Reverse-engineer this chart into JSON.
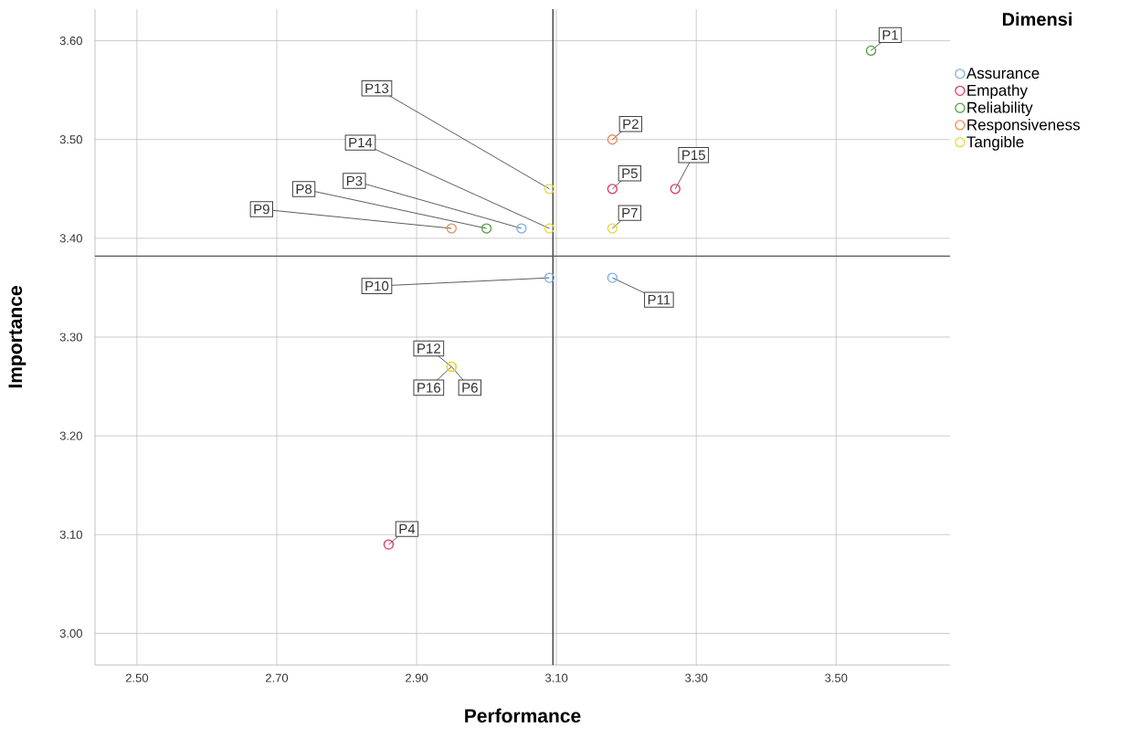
{
  "chart_data": {
    "type": "scatter",
    "xlabel": "Performance",
    "ylabel": "Importance",
    "legend_title": "Dimensi",
    "series": [
      {
        "name": "Assurance",
        "color": "#7aaee8",
        "x": [
          3.05,
          3.09,
          3.18
        ],
        "values": [
          3.41,
          3.36,
          3.36
        ]
      },
      {
        "name": "Empathy",
        "color": "#e0335a",
        "x": [
          2.86,
          3.18,
          3.27
        ],
        "values": [
          3.09,
          3.45,
          3.45
        ]
      },
      {
        "name": "Reliability",
        "color": "#4c9f3c",
        "x": [
          3.55,
          3.0
        ],
        "values": [
          3.59,
          3.41
        ]
      },
      {
        "name": "Responsiveness",
        "color": "#f08a5a",
        "x": [
          3.18,
          2.95
        ],
        "values": [
          3.5,
          3.41
        ]
      },
      {
        "name": "Tangible",
        "color": "#e8d83a",
        "x": [
          3.18,
          3.09,
          3.09,
          2.95,
          2.95,
          2.95
        ],
        "values": [
          3.41,
          3.45,
          3.41,
          3.27,
          3.27,
          3.27
        ]
      }
    ],
    "annotations": [
      {
        "text": "P1",
        "x": 3.55,
        "y": 3.59
      },
      {
        "text": "P2",
        "x": 3.18,
        "y": 3.5
      },
      {
        "text": "P3",
        "x": 3.05,
        "y": 3.41
      },
      {
        "text": "P4",
        "x": 2.86,
        "y": 3.09
      },
      {
        "text": "P5",
        "x": 3.18,
        "y": 3.45
      },
      {
        "text": "P6",
        "x": 2.95,
        "y": 3.27
      },
      {
        "text": "P7",
        "x": 3.18,
        "y": 3.41
      },
      {
        "text": "P8",
        "x": 3.0,
        "y": 3.41
      },
      {
        "text": "P9",
        "x": 2.95,
        "y": 3.41
      },
      {
        "text": "P10",
        "x": 3.09,
        "y": 3.36
      },
      {
        "text": "P11",
        "x": 3.18,
        "y": 3.36
      },
      {
        "text": "P12",
        "x": 2.95,
        "y": 3.27
      },
      {
        "text": "P13",
        "x": 3.09,
        "y": 3.45
      },
      {
        "text": "P14",
        "x": 3.09,
        "y": 3.41
      },
      {
        "text": "P15",
        "x": 3.27,
        "y": 3.45
      },
      {
        "text": "P16",
        "x": 2.95,
        "y": 3.27
      }
    ],
    "ref_lines": [
      {
        "axis": "x",
        "value": 3.095,
        "color": "#333333"
      },
      {
        "axis": "y",
        "value": 3.382,
        "color": "#555555"
      }
    ],
    "xlim": [
      2.44,
      3.663
    ],
    "ylim": [
      2.968,
      3.632
    ],
    "xticks": [
      {
        "value": 2.5,
        "label": "2.50"
      },
      {
        "value": 2.7,
        "label": "2.70"
      },
      {
        "value": 2.9,
        "label": "2.90"
      },
      {
        "value": 3.1,
        "label": "3.10"
      },
      {
        "value": 3.3,
        "label": "3.30"
      },
      {
        "value": 3.5,
        "label": "3.50"
      }
    ],
    "yticks": [
      {
        "value": 3.0,
        "label": "3.00"
      },
      {
        "value": 3.1,
        "label": "3.10"
      },
      {
        "value": 3.2,
        "label": "3.20"
      },
      {
        "value": 3.3,
        "label": "3.30"
      },
      {
        "value": 3.4,
        "label": "3.40"
      },
      {
        "value": 3.5,
        "label": "3.50"
      },
      {
        "value": 3.6,
        "label": "3.60"
      }
    ],
    "grid": true,
    "legend": "top right",
    "marker": "circle"
  }
}
